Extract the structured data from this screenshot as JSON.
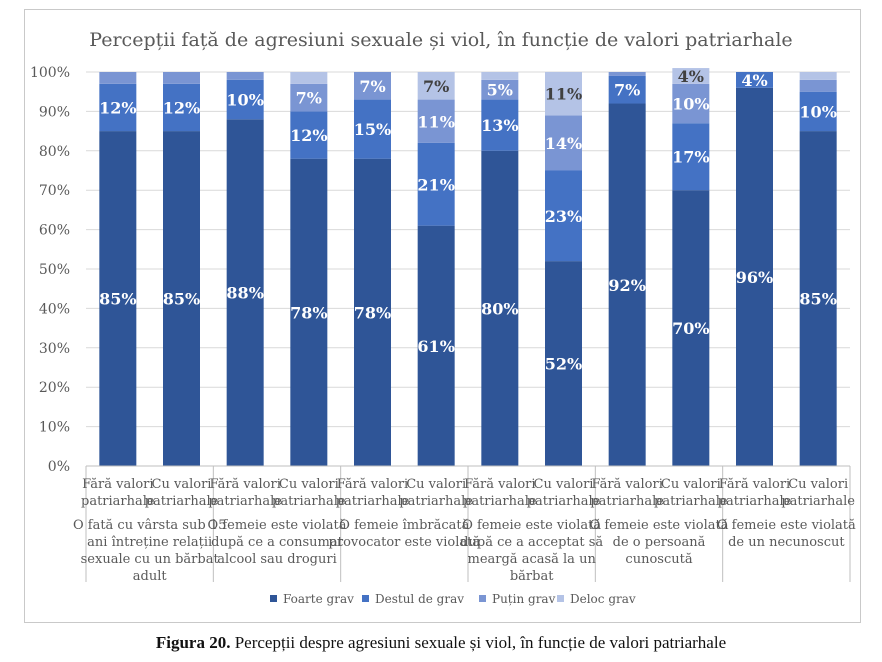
{
  "chart_data": {
    "type": "bar",
    "stacked": true,
    "percent": true,
    "title": "Percepții față de agresiuni sexuale și viol, în funcție de valori patriarhale",
    "ylim": [
      0,
      100
    ],
    "yticks": [
      "0%",
      "10%",
      "20%",
      "30%",
      "40%",
      "50%",
      "60%",
      "70%",
      "80%",
      "90%",
      "100%"
    ],
    "groups": [
      {
        "label": "O fată cu vârsta sub 15 ani întreține relații sexuale cu un bărbat adult",
        "lines": [
          "O fată cu vârsta sub 15",
          "ani întreține relații",
          "sexuale cu un bărbat",
          "adult"
        ]
      },
      {
        "label": "O femeie este violată după ce a consumat alcool sau droguri",
        "lines": [
          "O femeie este violată",
          "după ce a consumat",
          "alcool sau droguri"
        ]
      },
      {
        "label": "O femeie îmbrăcată provocator este violată",
        "lines": [
          "O femeie îmbrăcată",
          "provocator este violată"
        ]
      },
      {
        "label": "O femeie este violată după ce a acceptat să meargă acasă la un bărbat",
        "lines": [
          "O femeie este violată",
          "după ce a acceptat să",
          "meargă acasă la un",
          "bărbat"
        ]
      },
      {
        "label": "O femeie este violată de o persoană cunoscută",
        "lines": [
          "O femeie este violată",
          "de o persoană",
          "cunoscută"
        ]
      },
      {
        "label": "O femeie este violată de un necunoscut",
        "lines": [
          "O femeie este violată",
          "de un necunoscut"
        ]
      }
    ],
    "subcategories": [
      [
        "Fără valori",
        "patriarhale"
      ],
      [
        "Cu valori",
        "patriarhale"
      ]
    ],
    "series": [
      {
        "name": "Foarte grav",
        "color": "#2f5597",
        "values": [
          85,
          85,
          88,
          78,
          78,
          61,
          80,
          52,
          92,
          70,
          96,
          85
        ],
        "labels": [
          "85%",
          "85%",
          "88%",
          "78%",
          "78%",
          "61%",
          "80%",
          "52%",
          "92%",
          "70%",
          "96%",
          "85%"
        ]
      },
      {
        "name": "Destul de grav",
        "color": "#4472c4",
        "values": [
          12,
          12,
          10,
          12,
          15,
          21,
          13,
          23,
          7,
          17,
          4,
          10
        ],
        "labels": [
          "12%",
          "12%",
          "10%",
          "12%",
          "15%",
          "21%",
          "13%",
          "23%",
          "7%",
          "17%",
          "4%",
          "10%"
        ]
      },
      {
        "name": "Puțin grav",
        "color": "#7a95d3",
        "values": [
          3,
          3,
          2,
          7,
          7,
          11,
          5,
          14,
          1,
          10,
          0,
          3
        ],
        "labels": [
          "",
          "",
          "",
          "7%",
          "7%",
          "11%",
          "5%",
          "14%",
          "",
          "10%",
          "",
          ""
        ]
      },
      {
        "name": "Deloc grav",
        "color": "#b4c3e6",
        "values": [
          0,
          0,
          0,
          3,
          0,
          7,
          2,
          11,
          0,
          4,
          0,
          2
        ],
        "labels": [
          "",
          "",
          "",
          "",
          "",
          "7%",
          "",
          "11%",
          "",
          "4%",
          "",
          ""
        ]
      }
    ],
    "legend": "bottom",
    "grid": true
  },
  "caption": {
    "bold": "Figura 20.",
    "text": " Percepții despre agresiuni sexuale și viol, în funcție de valori patriarhale"
  }
}
